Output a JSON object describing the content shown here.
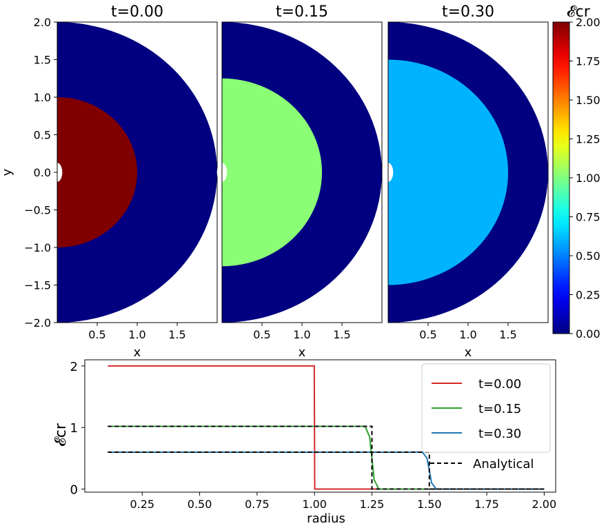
{
  "chart_data": [
    {
      "type": "heatmap",
      "panel": "t=0.00",
      "title": "t=0.00",
      "xlabel": "x",
      "ylabel": "y",
      "xlim": [
        0.0,
        2.0
      ],
      "ylim": [
        -2.0,
        2.0
      ],
      "r_inner": 0.06,
      "r_outer": 2.0,
      "core_radius": 1.0,
      "core_value": 2.0,
      "outer_value": 0.0,
      "xticks": [
        "0.5",
        "1.0",
        "1.5"
      ],
      "yticks": [
        "2.0",
        "1.5",
        "1.0",
        "0.5",
        "0.0",
        "−0.5",
        "−1.0",
        "−1.5",
        "−2.0"
      ]
    },
    {
      "type": "heatmap",
      "panel": "t=0.15",
      "title": "t=0.15",
      "xlabel": "x",
      "xlim": [
        0.0,
        2.0
      ],
      "ylim": [
        -2.0,
        2.0
      ],
      "r_inner": 0.06,
      "r_outer": 2.0,
      "core_radius": 1.25,
      "core_value": 1.02,
      "outer_value": 0.0,
      "xticks": [
        "0.5",
        "1.0",
        "1.5"
      ]
    },
    {
      "type": "heatmap",
      "panel": "t=0.30",
      "title": "t=0.30",
      "xlabel": "x",
      "xlim": [
        0.0,
        2.0
      ],
      "ylim": [
        -2.0,
        2.0
      ],
      "r_inner": 0.06,
      "r_outer": 2.0,
      "core_radius": 1.5,
      "core_value": 0.6,
      "outer_value": 0.0,
      "xticks": [
        "0.5",
        "1.0",
        "1.5"
      ]
    },
    {
      "type": "line",
      "xlabel": "radius",
      "ylabel": "𝓔cr",
      "xlim": [
        0.0,
        2.05
      ],
      "ylim": [
        -0.05,
        2.1
      ],
      "xticks": [
        "0.25",
        "0.50",
        "0.75",
        "1.00",
        "1.25",
        "1.50",
        "1.75",
        "2.00"
      ],
      "yticks": [
        "0",
        "1",
        "2"
      ],
      "series": [
        {
          "name": "t=0.00",
          "color": "#d62728",
          "x": [
            0.1,
            0.999,
            1.001,
            2.0
          ],
          "y": [
            2.0,
            2.0,
            0.0,
            0.0
          ]
        },
        {
          "name": "t=0.15",
          "color": "#2ca02c",
          "x": [
            0.1,
            1.22,
            1.24,
            1.25,
            1.26,
            1.28,
            2.0
          ],
          "y": [
            1.02,
            1.02,
            0.85,
            0.5,
            0.15,
            0.0,
            0.0
          ]
        },
        {
          "name": "t=0.30",
          "color": "#1f77b4",
          "x": [
            0.1,
            1.47,
            1.49,
            1.5,
            1.51,
            1.53,
            2.0
          ],
          "y": [
            0.6,
            0.6,
            0.5,
            0.3,
            0.1,
            0.0,
            0.0
          ]
        },
        {
          "name": "Analytical",
          "color": "#000000",
          "dashed": true,
          "segments": [
            {
              "x": [
                0.1,
                1.25,
                1.25,
                2.0
              ],
              "y": [
                1.02,
                1.02,
                0.0,
                0.0
              ]
            },
            {
              "x": [
                0.1,
                1.5,
                1.5,
                2.0
              ],
              "y": [
                0.6,
                0.6,
                0.0,
                0.0
              ]
            }
          ]
        }
      ],
      "legend": [
        "t=0.00",
        "t=0.15",
        "t=0.30",
        "Analytical"
      ],
      "legend_position": "top-right"
    }
  ],
  "colorbar": {
    "label": "𝓔cr",
    "vmin": 0.0,
    "vmax": 2.0,
    "ticks": [
      "2.00",
      "1.75",
      "1.50",
      "1.25",
      "1.00",
      "0.75",
      "0.50",
      "0.25",
      "0.00"
    ],
    "colormap": "jet"
  }
}
